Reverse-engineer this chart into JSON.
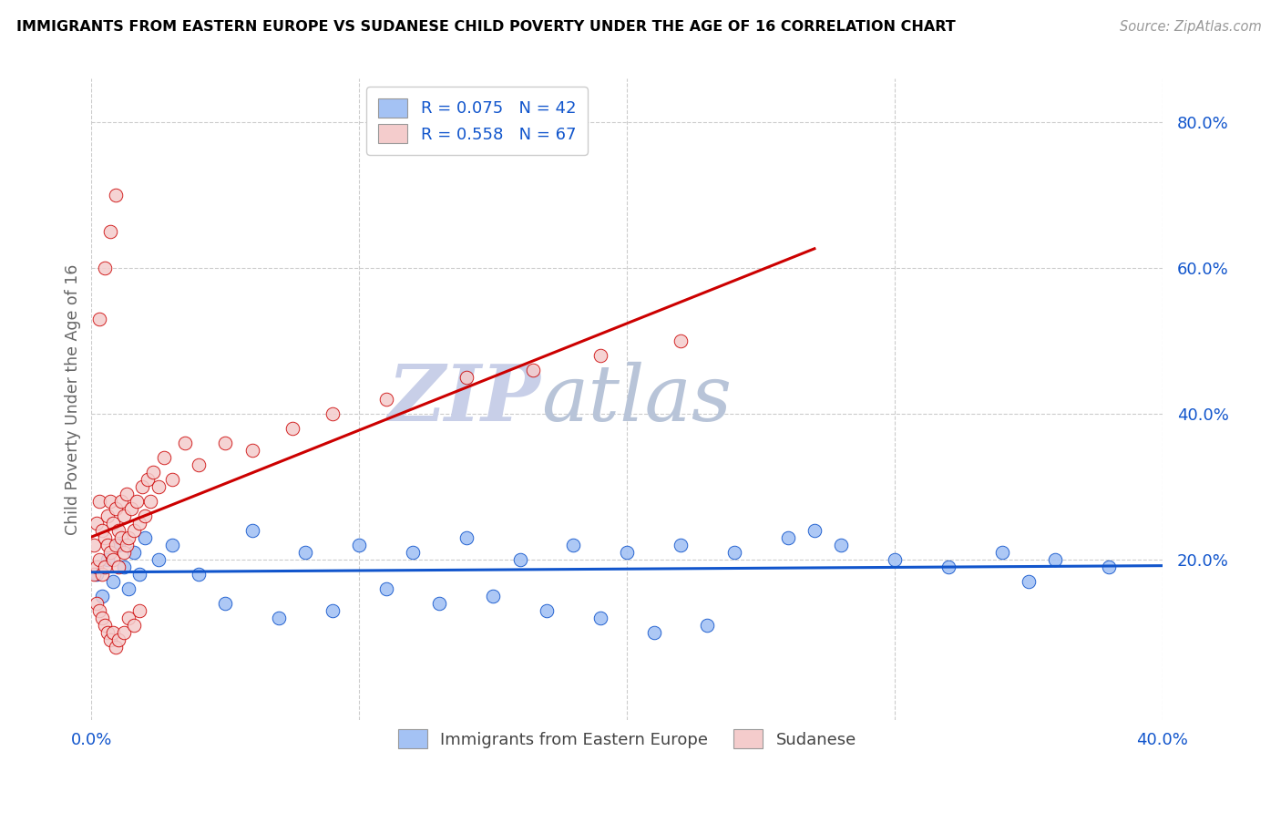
{
  "title": "IMMIGRANTS FROM EASTERN EUROPE VS SUDANESE CHILD POVERTY UNDER THE AGE OF 16 CORRELATION CHART",
  "source": "Source: ZipAtlas.com",
  "ylabel": "Child Poverty Under the Age of 16",
  "xlim": [
    0.0,
    0.4
  ],
  "ylim": [
    -0.02,
    0.86
  ],
  "yticks": [
    0.0,
    0.2,
    0.4,
    0.6,
    0.8
  ],
  "ytick_labels": [
    "",
    "20.0%",
    "40.0%",
    "60.0%",
    "80.0%"
  ],
  "xtick_labels": [
    "0.0%",
    "40.0%"
  ],
  "legend_r1": "R = 0.075",
  "legend_n1": "N = 42",
  "legend_r2": "R = 0.558",
  "legend_n2": "N = 67",
  "color_blue": "#a4c2f4",
  "color_pink": "#f4cccc",
  "line_blue": "#1155cc",
  "line_pink": "#cc0000",
  "watermark_zip": "ZIP",
  "watermark_atlas": "atlas",
  "watermark_color": "#c8cfe8",
  "blue_scatter_x": [
    0.002,
    0.004,
    0.006,
    0.008,
    0.01,
    0.012,
    0.014,
    0.016,
    0.018,
    0.02,
    0.025,
    0.03,
    0.04,
    0.06,
    0.08,
    0.1,
    0.12,
    0.14,
    0.16,
    0.18,
    0.2,
    0.22,
    0.24,
    0.26,
    0.28,
    0.3,
    0.32,
    0.34,
    0.36,
    0.38,
    0.05,
    0.07,
    0.09,
    0.11,
    0.13,
    0.15,
    0.17,
    0.19,
    0.21,
    0.23,
    0.27,
    0.35
  ],
  "blue_scatter_y": [
    0.18,
    0.15,
    0.2,
    0.17,
    0.22,
    0.19,
    0.16,
    0.21,
    0.18,
    0.23,
    0.2,
    0.22,
    0.18,
    0.24,
    0.21,
    0.22,
    0.21,
    0.23,
    0.2,
    0.22,
    0.21,
    0.22,
    0.21,
    0.23,
    0.22,
    0.2,
    0.19,
    0.21,
    0.2,
    0.19,
    0.14,
    0.12,
    0.13,
    0.16,
    0.14,
    0.15,
    0.13,
    0.12,
    0.1,
    0.11,
    0.24,
    0.17
  ],
  "pink_scatter_x": [
    0.001,
    0.001,
    0.002,
    0.002,
    0.003,
    0.003,
    0.004,
    0.004,
    0.005,
    0.005,
    0.006,
    0.006,
    0.007,
    0.007,
    0.008,
    0.008,
    0.009,
    0.009,
    0.01,
    0.01,
    0.011,
    0.011,
    0.012,
    0.012,
    0.013,
    0.013,
    0.014,
    0.015,
    0.016,
    0.017,
    0.018,
    0.019,
    0.02,
    0.021,
    0.022,
    0.023,
    0.025,
    0.027,
    0.03,
    0.035,
    0.04,
    0.05,
    0.06,
    0.075,
    0.09,
    0.11,
    0.14,
    0.165,
    0.19,
    0.22,
    0.002,
    0.003,
    0.004,
    0.005,
    0.006,
    0.007,
    0.008,
    0.009,
    0.01,
    0.012,
    0.014,
    0.016,
    0.018,
    0.003,
    0.005,
    0.007,
    0.009
  ],
  "pink_scatter_y": [
    0.18,
    0.22,
    0.19,
    0.25,
    0.2,
    0.28,
    0.18,
    0.24,
    0.19,
    0.23,
    0.22,
    0.26,
    0.21,
    0.28,
    0.2,
    0.25,
    0.22,
    0.27,
    0.19,
    0.24,
    0.23,
    0.28,
    0.21,
    0.26,
    0.22,
    0.29,
    0.23,
    0.27,
    0.24,
    0.28,
    0.25,
    0.3,
    0.26,
    0.31,
    0.28,
    0.32,
    0.3,
    0.34,
    0.31,
    0.36,
    0.33,
    0.36,
    0.35,
    0.38,
    0.4,
    0.42,
    0.45,
    0.46,
    0.48,
    0.5,
    0.14,
    0.13,
    0.12,
    0.11,
    0.1,
    0.09,
    0.1,
    0.08,
    0.09,
    0.1,
    0.12,
    0.11,
    0.13,
    0.53,
    0.6,
    0.65,
    0.7
  ]
}
